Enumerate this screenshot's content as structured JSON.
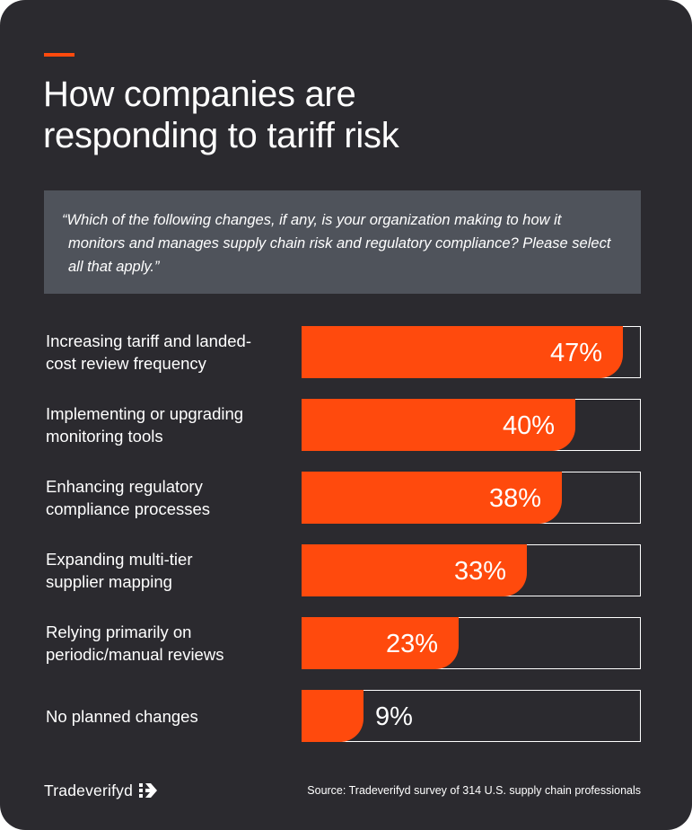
{
  "header": {
    "title_line1": "How companies are",
    "title_line2": "responding to tariff risk"
  },
  "question": "“Which of the following changes, if any, is your organization making to how it monitors and manages supply chain risk and regulatory compliance? Please select all that apply.”",
  "colors": {
    "background": "#2b2a2f",
    "accent": "#ff4a0d",
    "question_box": "#4f535b",
    "text": "#ffffff"
  },
  "chart_data": {
    "type": "bar",
    "orientation": "horizontal",
    "title": "How companies are responding to tariff risk",
    "xlim": [
      0,
      100
    ],
    "unit": "%",
    "categories": [
      "Increasing tariff and landed-cost review frequency",
      "Implementing or upgrading monitoring tools",
      "Enhancing regulatory compliance processes",
      "Expanding multi-tier supplier mapping",
      "Relying primarily on periodic/manual reviews",
      "No planned changes"
    ],
    "label_lines": [
      [
        "Increasing tariff and landed-",
        "cost review frequency"
      ],
      [
        "Implementing or upgrading",
        "monitoring tools"
      ],
      [
        "Enhancing regulatory",
        "compliance processes"
      ],
      [
        "Expanding multi-tier",
        "supplier mapping"
      ],
      [
        "Relying primarily on",
        "periodic/manual reviews"
      ],
      [
        "No planned changes"
      ]
    ],
    "values": [
      47,
      40,
      38,
      33,
      23,
      9
    ],
    "value_labels": [
      "47%",
      "40%",
      "38%",
      "33%",
      "23%",
      "9%"
    ]
  },
  "footer": {
    "brand": "Tradeverifyd",
    "logo_icon": "tradeverifyd-logo-icon",
    "source": "Source: Tradeverifyd survey of 314 U.S. supply chain professionals"
  }
}
